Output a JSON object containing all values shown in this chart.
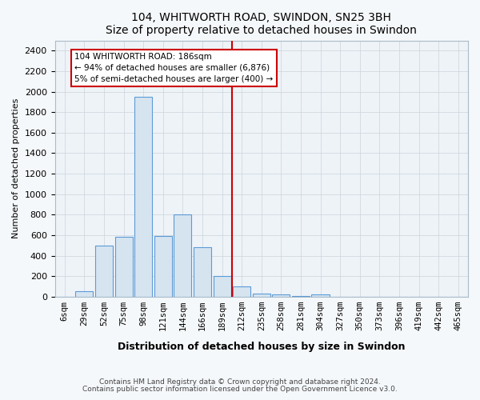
{
  "title": "104, WHITWORTH ROAD, SWINDON, SN25 3BH",
  "subtitle": "Size of property relative to detached houses in Swindon",
  "xlabel": "Distribution of detached houses by size in Swindon",
  "ylabel": "Number of detached properties",
  "bar_labels": [
    "6sqm",
    "29sqm",
    "52sqm",
    "75sqm",
    "98sqm",
    "121sqm",
    "144sqm",
    "166sqm",
    "189sqm",
    "212sqm",
    "235sqm",
    "258sqm",
    "281sqm",
    "304sqm",
    "327sqm",
    "350sqm",
    "373sqm",
    "396sqm",
    "419sqm",
    "442sqm",
    "465sqm"
  ],
  "bar_values": [
    0,
    50,
    500,
    580,
    1950,
    590,
    800,
    480,
    200,
    100,
    30,
    20,
    5,
    20,
    0,
    0,
    0,
    0,
    0,
    0,
    0
  ],
  "bar_color": "#d6e4f0",
  "bar_edge_color": "#5b9bd5",
  "vline_x": 8.5,
  "vline_color": "#cc0000",
  "annotation_text": "104 WHITWORTH ROAD: 186sqm\n← 94% of detached houses are smaller (6,876)\n5% of semi-detached houses are larger (400) →",
  "annotation_box_color": "white",
  "annotation_box_edge_color": "#cc0000",
  "ylim": [
    0,
    2500
  ],
  "yticks": [
    0,
    200,
    400,
    600,
    800,
    1000,
    1200,
    1400,
    1600,
    1800,
    2000,
    2200,
    2400
  ],
  "footer1": "Contains HM Land Registry data © Crown copyright and database right 2024.",
  "footer2": "Contains public sector information licensed under the Open Government Licence v3.0.",
  "background_color": "#f5f8fa",
  "plot_bg_color": "#eef3f8",
  "grid_color": "#d0d8e0"
}
